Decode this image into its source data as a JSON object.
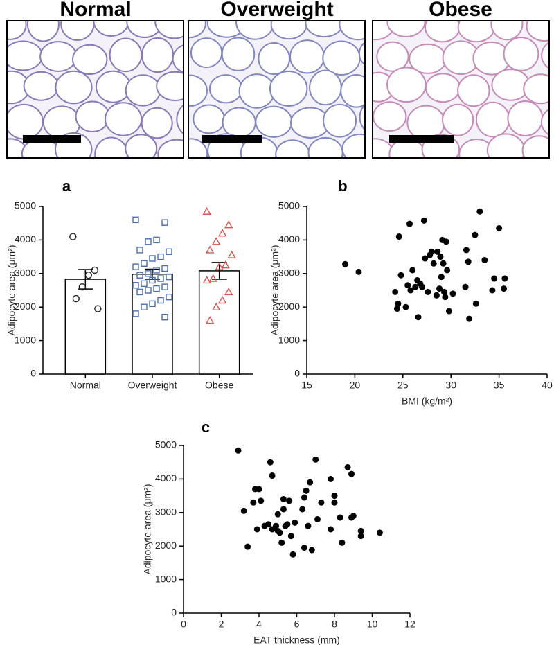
{
  "images": {
    "titles": [
      "Normal",
      "Overweight",
      "Obese"
    ]
  },
  "chart_data": [
    {
      "type": "bar",
      "title": "a",
      "ylabel": "Adipocyte area (μm²)",
      "categories": [
        "Normal",
        "Overweight",
        "Obese"
      ],
      "values": [
        2830,
        2980,
        3080
      ],
      "errors": [
        290,
        150,
        250
      ],
      "points": [
        [
          4100,
          3100,
          2950,
          2600,
          2250,
          1950
        ],
        [
          4600,
          4520,
          4000,
          3950,
          3700,
          3650,
          3500,
          3450,
          3300,
          3200,
          3150,
          3100,
          3000,
          2950,
          2900,
          2850,
          2800,
          2700,
          2650,
          2600,
          2550,
          2500,
          2450,
          2300,
          2200,
          2100,
          2000,
          1800,
          1700
        ],
        [
          4850,
          4450,
          4200,
          3950,
          3700,
          3550,
          3250,
          3200,
          2850,
          2800,
          2450,
          2200,
          2000,
          1600
        ]
      ],
      "markers": [
        "circle",
        "square",
        "triangle"
      ],
      "point_colors": [
        "#222222",
        "#4a6cb3",
        "#d9534f"
      ],
      "color": "#ffffff",
      "ylim": [
        0,
        5000
      ],
      "yticks": [
        0,
        1000,
        2000,
        3000,
        4000,
        5000
      ]
    },
    {
      "type": "scatter",
      "title": "b",
      "xlabel": "BMI (kg/m²)",
      "ylabel": "Adipocyte area (μm²)",
      "color": "#000000",
      "x": [
        19.0,
        20.4,
        24.2,
        24.4,
        24.5,
        24.6,
        24.8,
        25.3,
        25.5,
        25.7,
        25.8,
        26.0,
        26.3,
        26.5,
        26.6,
        26.8,
        27.0,
        27.2,
        27.3,
        27.6,
        27.8,
        28.0,
        28.2,
        28.5,
        28.6,
        28.8,
        28.9,
        29.0,
        29.1,
        29.2,
        29.3,
        29.4,
        29.5,
        29.6,
        29.8,
        30.2,
        31.5,
        31.6,
        31.8,
        31.9,
        32.5,
        32.6,
        33.0,
        33.5,
        34.3,
        34.5,
        35.0,
        35.5,
        35.6
      ],
      "values": [
        3280,
        3050,
        2450,
        1950,
        2100,
        4100,
        2950,
        2000,
        2650,
        4480,
        2500,
        3100,
        2600,
        2800,
        1700,
        2700,
        2600,
        4580,
        3450,
        2450,
        3550,
        3650,
        3300,
        2350,
        3650,
        2550,
        3500,
        2900,
        4000,
        3300,
        2450,
        2300,
        3950,
        3100,
        1880,
        2400,
        2600,
        3700,
        3350,
        1650,
        4150,
        2100,
        4850,
        3400,
        2500,
        2850,
        4350,
        2550,
        2850
      ],
      "xlim": [
        15,
        40
      ],
      "xticks": [
        15,
        20,
        25,
        30,
        35,
        40
      ],
      "ylim": [
        0,
        5000
      ],
      "yticks": [
        0,
        1000,
        2000,
        3000,
        4000,
        5000
      ]
    },
    {
      "type": "scatter",
      "title": "c",
      "xlabel": "EAT thickness (mm)",
      "ylabel": "Adipocyte area (μm²)",
      "color": "#000000",
      "x": [
        2.9,
        3.2,
        3.4,
        3.7,
        3.8,
        3.9,
        4.0,
        4.1,
        4.3,
        4.5,
        4.6,
        4.7,
        4.7,
        4.9,
        5.0,
        5.0,
        5.1,
        5.2,
        5.3,
        5.3,
        5.4,
        5.5,
        5.6,
        5.7,
        5.8,
        5.9,
        6.3,
        6.4,
        6.4,
        6.5,
        6.6,
        6.7,
        6.8,
        7.0,
        7.1,
        7.3,
        7.8,
        7.8,
        8.0,
        8.0,
        8.3,
        8.4,
        8.7,
        8.9,
        8.9,
        9.0,
        9.4,
        9.4,
        10.4
      ],
      "values": [
        4850,
        3050,
        1980,
        3300,
        3700,
        2500,
        3700,
        3350,
        2600,
        2650,
        4500,
        4100,
        2500,
        2600,
        2450,
        2950,
        2400,
        2100,
        3100,
        3400,
        2600,
        2650,
        3350,
        2300,
        1750,
        2700,
        3100,
        3450,
        1950,
        3650,
        2600,
        3900,
        1880,
        4580,
        2800,
        3300,
        4000,
        2500,
        3500,
        3300,
        2850,
        2100,
        4350,
        2850,
        4150,
        2900,
        2300,
        2450,
        2400
      ],
      "xlim": [
        0,
        12
      ],
      "xticks": [
        0,
        2,
        4,
        6,
        8,
        10,
        12
      ],
      "ylim": [
        0,
        5000
      ],
      "yticks": [
        0,
        1000,
        2000,
        3000,
        4000,
        5000
      ]
    }
  ]
}
